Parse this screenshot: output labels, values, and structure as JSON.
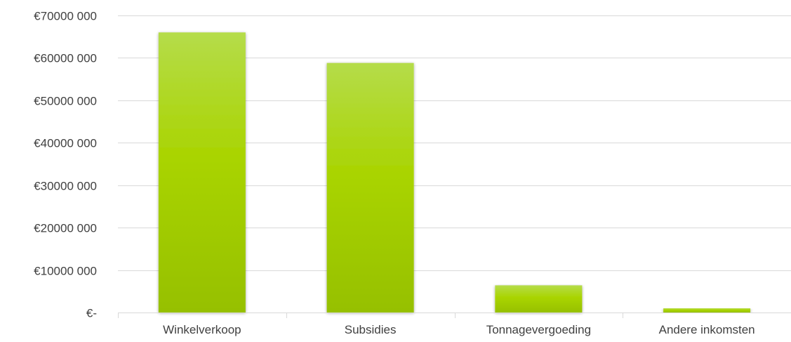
{
  "chart_data": {
    "type": "bar",
    "categories": [
      "Winkelverkoop",
      "Subsidies",
      "Tonnagevergoeding",
      "Andere inkomsten"
    ],
    "values": [
      66000000,
      58800000,
      6400000,
      1000000
    ],
    "ylim": [
      0,
      70000000
    ],
    "ytick_values": [
      0,
      10000000,
      20000000,
      30000000,
      40000000,
      50000000,
      60000000,
      70000000
    ],
    "ytick_labels": [
      "€-",
      "€10000 000",
      "€20000 000",
      "€30000 000",
      "€40000 000",
      "€50000 000",
      "€60000 000",
      "€70000 000"
    ],
    "grid": true,
    "legend": "none",
    "colors": {
      "bar_top": "#b5dc4a",
      "bar_mid": "#a9d400",
      "bar_bottom": "#96c000",
      "grid": "#d9d9d9",
      "text": "#404040"
    }
  }
}
